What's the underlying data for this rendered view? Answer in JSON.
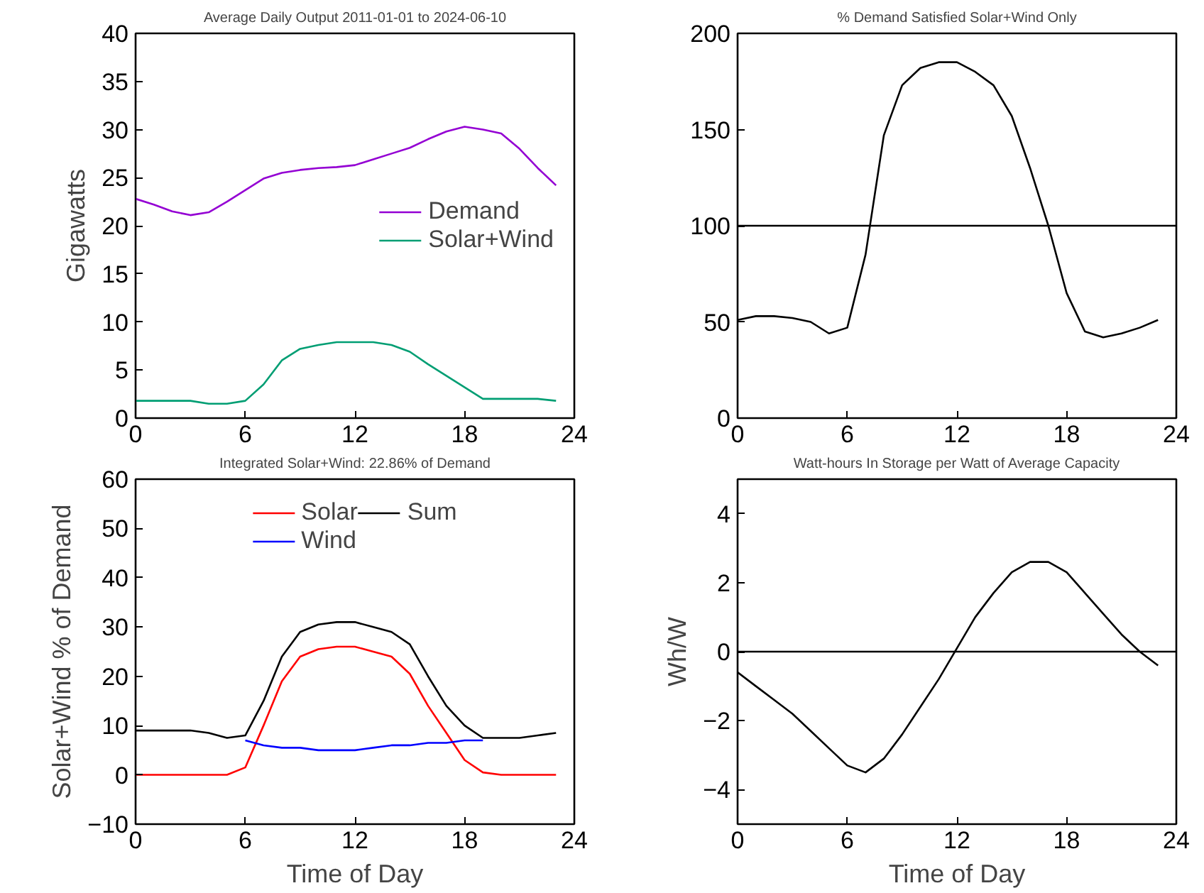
{
  "chart_data": [
    {
      "type": "line",
      "title": "Average Daily Output 2011-01-01 to 2024-06-10",
      "ylabel": "Gigawatts",
      "xlim": [
        0,
        24
      ],
      "xticks": [
        0,
        6,
        12,
        18,
        24
      ],
      "ylim": [
        0,
        40
      ],
      "yticks": [
        0,
        5,
        10,
        15,
        20,
        25,
        30,
        35,
        40
      ],
      "grid": false,
      "legend": "right",
      "x": [
        0,
        1,
        2,
        3,
        4,
        5,
        6,
        7,
        8,
        9,
        10,
        11,
        12,
        13,
        14,
        15,
        16,
        17,
        18,
        19,
        20,
        21,
        22,
        23
      ],
      "series": [
        {
          "name": "Demand",
          "color": "#9400d3",
          "values": [
            22.8,
            22.2,
            21.5,
            21.1,
            21.4,
            22.5,
            23.7,
            24.9,
            25.5,
            25.8,
            26.0,
            26.1,
            26.3,
            26.9,
            27.5,
            28.1,
            29.0,
            29.8,
            30.3,
            30.0,
            29.6,
            28.0,
            26.0,
            24.2
          ]
        },
        {
          "name": "Solar+Wind",
          "color": "#009e73",
          "values": [
            1.8,
            1.8,
            1.8,
            1.8,
            1.5,
            1.5,
            1.8,
            3.5,
            6.0,
            7.2,
            7.6,
            7.9,
            7.9,
            7.9,
            7.6,
            6.9,
            5.6,
            4.4,
            3.2,
            2.0,
            2.0,
            2.0,
            2.0,
            1.8
          ]
        }
      ]
    },
    {
      "type": "line",
      "title": "% Demand Satisfied Solar+Wind Only",
      "xlim": [
        0,
        24
      ],
      "xticks": [
        0,
        6,
        12,
        18,
        24
      ],
      "ylim": [
        0,
        200
      ],
      "yticks": [
        0,
        50,
        100,
        150,
        200
      ],
      "grid": false,
      "ref_lines": [
        {
          "axis": "y",
          "value": 100,
          "color": "#000000"
        }
      ],
      "x": [
        0,
        1,
        2,
        3,
        4,
        5,
        6,
        7,
        8,
        9,
        10,
        11,
        12,
        13,
        14,
        15,
        16,
        17,
        18,
        19,
        20,
        21,
        22,
        23
      ],
      "series": [
        {
          "color": "#000000",
          "values": [
            51,
            53,
            53,
            52,
            50,
            44,
            47,
            85,
            147,
            173,
            182,
            185,
            185,
            180,
            173,
            157,
            130,
            100,
            65,
            45,
            42,
            44,
            47,
            51
          ]
        }
      ]
    },
    {
      "type": "line",
      "title": "Integrated Solar+Wind: 22.86% of Demand",
      "xlabel": "Time of Day",
      "ylabel": "Solar+Wind % of Demand",
      "xlim": [
        0,
        24
      ],
      "xticks": [
        0,
        6,
        12,
        18,
        24
      ],
      "ylim": [
        -10,
        60
      ],
      "yticks": [
        -10,
        0,
        10,
        20,
        30,
        40,
        50,
        60
      ],
      "grid": false,
      "legend": "top",
      "x": [
        0,
        1,
        2,
        3,
        4,
        5,
        6,
        7,
        8,
        9,
        10,
        11,
        12,
        13,
        14,
        15,
        16,
        17,
        18,
        19,
        20,
        21,
        22,
        23
      ],
      "series": [
        {
          "name": "Solar",
          "color": "#ff0000",
          "values": [
            0,
            0,
            0,
            0,
            0,
            0,
            1.5,
            10,
            19,
            24,
            25.5,
            26,
            26,
            25,
            24,
            20.5,
            14,
            8.5,
            3,
            0.5,
            0,
            0,
            0,
            0
          ]
        },
        {
          "name": "Wind",
          "color": "#0000ff",
          "x": [
            6,
            7,
            8,
            9,
            10,
            11,
            12,
            13,
            14,
            15,
            16,
            17,
            18,
            19
          ],
          "values": [
            7,
            6,
            5.5,
            5.5,
            5,
            5,
            5,
            5.5,
            6,
            6,
            6.5,
            6.5,
            7,
            7
          ]
        },
        {
          "name": "Sum",
          "color": "#000000",
          "values": [
            9,
            9,
            9,
            9,
            8.5,
            7.5,
            8,
            15,
            24,
            29,
            30.5,
            31,
            31,
            30,
            29,
            26.5,
            20,
            14,
            10,
            7.5,
            7.5,
            7.5,
            8,
            8.5
          ]
        }
      ]
    },
    {
      "type": "line",
      "title": "Watt-hours In Storage per Watt of Average Capacity",
      "xlabel": "Time of Day",
      "ylabel": "Wh/W",
      "xlim": [
        0,
        24
      ],
      "xticks": [
        0,
        6,
        12,
        18,
        24
      ],
      "ylim": [
        -5,
        5
      ],
      "yticks": [
        -4,
        -2,
        0,
        2,
        4
      ],
      "grid": false,
      "ref_lines": [
        {
          "axis": "y",
          "value": 0,
          "color": "#000000"
        }
      ],
      "x": [
        0,
        1,
        2,
        3,
        4,
        5,
        6,
        7,
        8,
        9,
        10,
        11,
        12,
        13,
        14,
        15,
        16,
        17,
        18,
        19,
        20,
        21,
        22,
        23
      ],
      "series": [
        {
          "color": "#000000",
          "values": [
            -0.6,
            -1.0,
            -1.4,
            -1.8,
            -2.3,
            -2.8,
            -3.3,
            -3.5,
            -3.1,
            -2.4,
            -1.6,
            -0.8,
            0.1,
            1.0,
            1.7,
            2.3,
            2.6,
            2.6,
            2.3,
            1.7,
            1.1,
            0.5,
            0.0,
            -0.4
          ]
        }
      ]
    }
  ]
}
